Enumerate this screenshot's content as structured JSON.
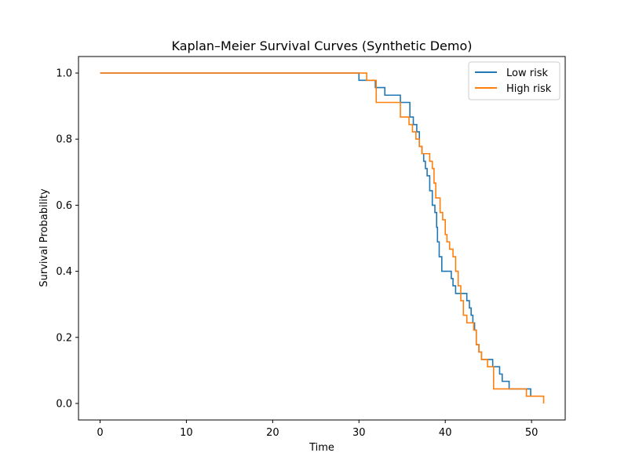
{
  "chart_data": {
    "type": "line",
    "step": "post",
    "title": "Kaplan–Meier Survival Curves (Synthetic Demo)",
    "xlabel": "Time",
    "ylabel": "Survival Probability",
    "xlim": [
      -2.5,
      53.9
    ],
    "ylim": [
      -0.05,
      1.05
    ],
    "xticks": [
      0,
      10,
      20,
      30,
      40,
      50
    ],
    "yticks": [
      0.0,
      0.2,
      0.4,
      0.6,
      0.8,
      1.0
    ],
    "ytick_labels": [
      "0.0",
      "0.2",
      "0.4",
      "0.6",
      "0.8",
      "1.0"
    ],
    "grid": false,
    "legend_position": "top-right",
    "series": [
      {
        "name": "Low risk",
        "color": "#1f77b4",
        "x": [
          0,
          30.0,
          31.0,
          31.9,
          33.0,
          34.8,
          35.9,
          36.3,
          36.7,
          37.0,
          37.3,
          37.5,
          37.7,
          37.9,
          38.2,
          38.5,
          38.8,
          39.0,
          39.1,
          39.3,
          39.6,
          40.7,
          40.9,
          41.2,
          42.5,
          42.8,
          43.0,
          43.2,
          43.4,
          43.6,
          43.9,
          44.2,
          45.5,
          46.3,
          46.6,
          47.4,
          49.9
        ],
        "y": [
          1.0,
          0.978,
          0.978,
          0.956,
          0.933,
          0.911,
          0.867,
          0.844,
          0.822,
          0.778,
          0.756,
          0.733,
          0.711,
          0.689,
          0.644,
          0.6,
          0.578,
          0.533,
          0.489,
          0.444,
          0.4,
          0.378,
          0.356,
          0.333,
          0.311,
          0.289,
          0.267,
          0.244,
          0.222,
          0.178,
          0.156,
          0.133,
          0.111,
          0.089,
          0.067,
          0.044,
          0.022
        ]
      },
      {
        "name": "High risk",
        "color": "#ff7f0e",
        "x": [
          0,
          30.9,
          31.7,
          32.0,
          34.8,
          35.8,
          36.2,
          36.6,
          37.0,
          37.3,
          38.2,
          38.5,
          38.7,
          38.9,
          39.4,
          39.7,
          40.0,
          40.2,
          40.5,
          40.9,
          41.2,
          41.5,
          41.8,
          42.1,
          42.5,
          43.3,
          43.6,
          43.9,
          44.2,
          44.9,
          45.6,
          49.4,
          51.4
        ],
        "y": [
          1.0,
          0.978,
          0.978,
          0.911,
          0.867,
          0.844,
          0.822,
          0.8,
          0.778,
          0.756,
          0.733,
          0.711,
          0.667,
          0.622,
          0.578,
          0.556,
          0.511,
          0.489,
          0.467,
          0.444,
          0.4,
          0.356,
          0.311,
          0.267,
          0.244,
          0.222,
          0.178,
          0.156,
          0.133,
          0.111,
          0.044,
          0.022,
          0.0
        ]
      }
    ]
  }
}
